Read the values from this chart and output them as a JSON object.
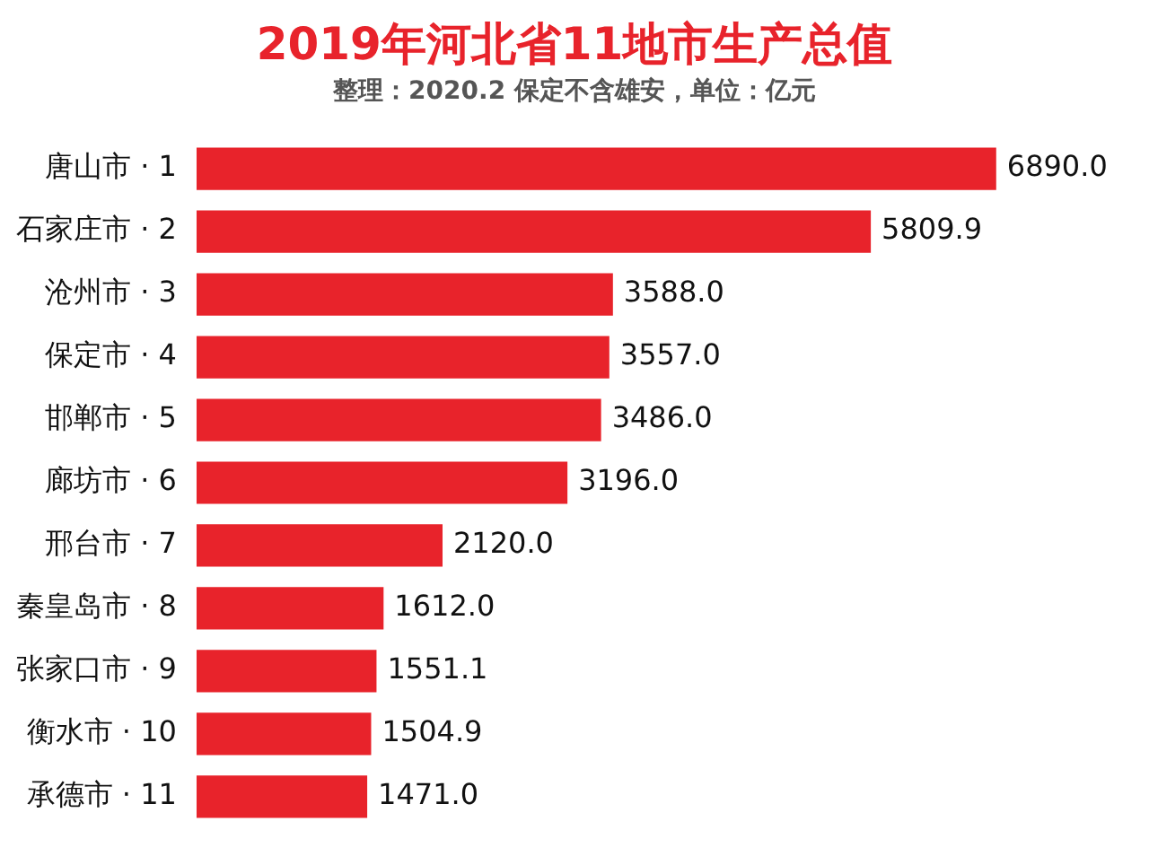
{
  "chart_data": {
    "type": "bar",
    "orientation": "horizontal",
    "title": "2019年河北省11地市生产总值",
    "subtitle": "整理：2020.2  保定不含雄安，单位：亿元",
    "categories": [
      "唐山市 · 1",
      "石家庄市 · 2",
      "沧州市 · 3",
      "保定市 · 4",
      "邯郸市 · 5",
      "廊坊市 · 6",
      "邢台市 · 7",
      "秦皇岛市 · 8",
      "张家口市 · 9",
      "衡水市 · 10",
      "承德市 · 11"
    ],
    "values": [
      6890.0,
      5809.9,
      3588.0,
      3557.0,
      3486.0,
      3196.0,
      2120.0,
      1612.0,
      1551.1,
      1504.9,
      1471.0
    ],
    "value_labels": [
      "6890.0",
      "5809.9",
      "3588.0",
      "3557.0",
      "3486.0",
      "3196.0",
      "2120.0",
      "1612.0",
      "1551.1",
      "1504.9",
      "1471.0"
    ],
    "color": "#e8232b",
    "legend": false
  }
}
